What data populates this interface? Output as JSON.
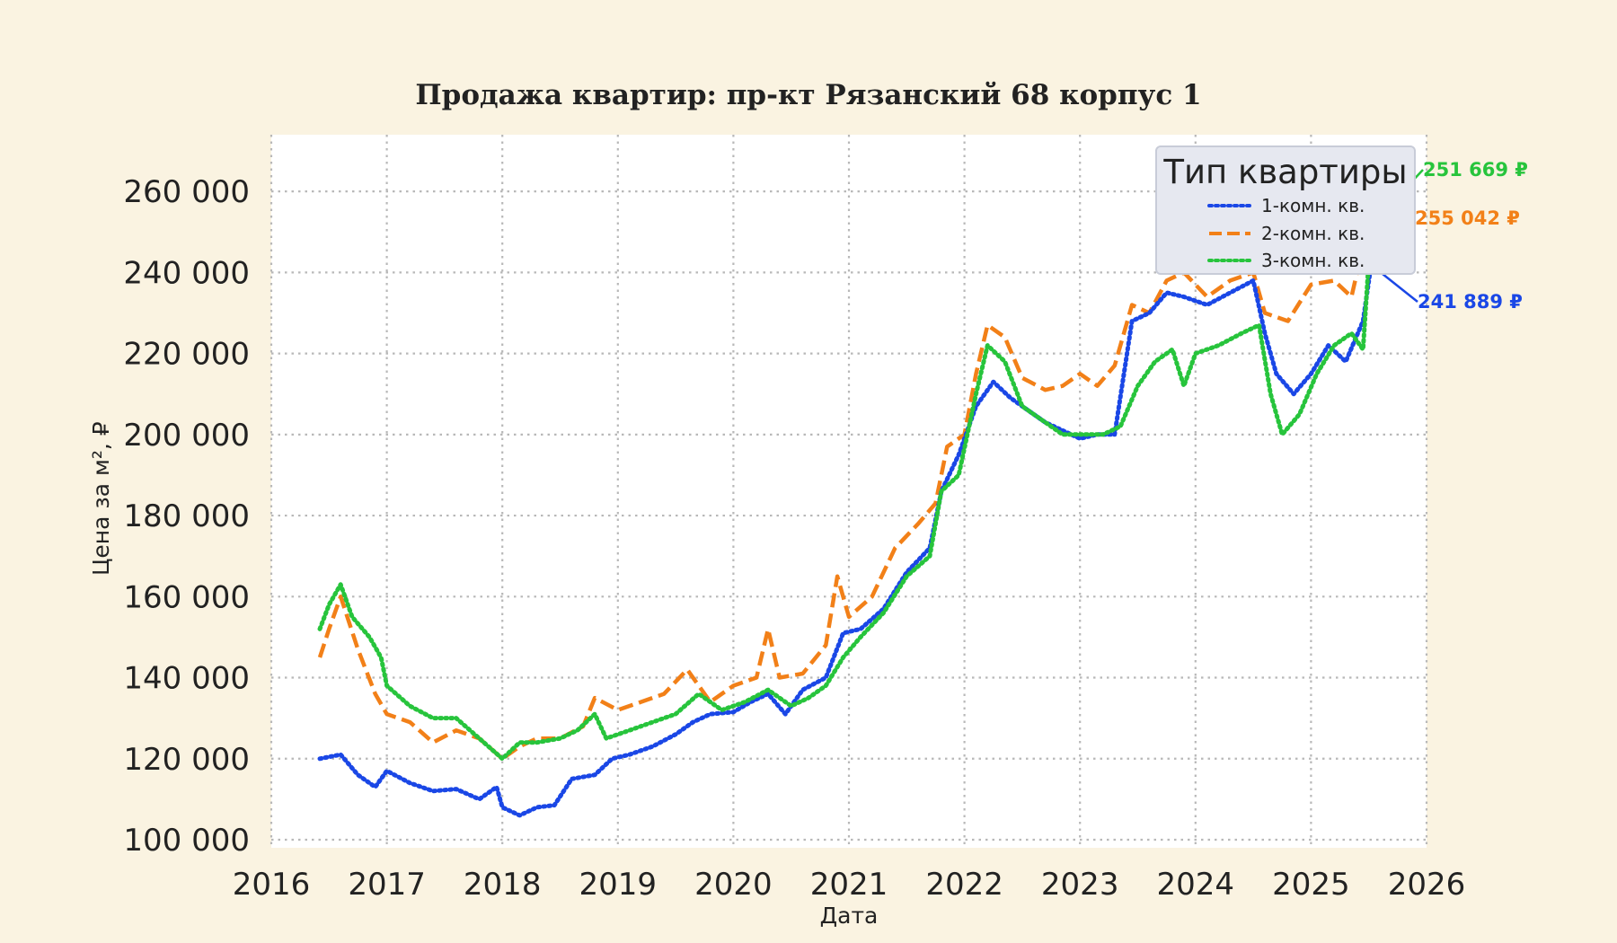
{
  "chart_data": {
    "type": "line",
    "title": "Продажа квартир: пр-кт Рязанский 68 корпус 1",
    "xlabel": "Дата",
    "ylabel": "Цена за м², ₽",
    "xlim": [
      2016,
      2026
    ],
    "ylim": [
      98000,
      274000
    ],
    "x_ticks": [
      "2016",
      "2017",
      "2018",
      "2019",
      "2020",
      "2021",
      "2022",
      "2023",
      "2024",
      "2025",
      "2026"
    ],
    "y_ticks": [
      100000,
      120000,
      140000,
      160000,
      180000,
      200000,
      220000,
      240000,
      260000
    ],
    "y_tick_labels": [
      "100 000",
      "120 000",
      "140 000",
      "160 000",
      "180 000",
      "200 000",
      "220 000",
      "240 000",
      "260 000"
    ],
    "grid": true,
    "legend": {
      "title": "Тип квартиры",
      "placement": "top-right"
    },
    "series": [
      {
        "name": "1-комн. кв.",
        "color": "#1a47e6",
        "style": "dotted",
        "end_label": "241 889 ₽",
        "points": [
          [
            2016.42,
            120000
          ],
          [
            2016.6,
            121000
          ],
          [
            2016.75,
            116000
          ],
          [
            2016.9,
            113000
          ],
          [
            2017.0,
            117000
          ],
          [
            2017.2,
            114000
          ],
          [
            2017.4,
            112000
          ],
          [
            2017.6,
            112500
          ],
          [
            2017.8,
            110000
          ],
          [
            2017.95,
            113000
          ],
          [
            2018.0,
            108000
          ],
          [
            2018.15,
            106000
          ],
          [
            2018.3,
            108000
          ],
          [
            2018.45,
            108500
          ],
          [
            2018.6,
            115000
          ],
          [
            2018.8,
            116000
          ],
          [
            2018.95,
            120000
          ],
          [
            2019.1,
            121000
          ],
          [
            2019.3,
            123000
          ],
          [
            2019.5,
            126000
          ],
          [
            2019.65,
            129000
          ],
          [
            2019.8,
            131000
          ],
          [
            2020.0,
            131500
          ],
          [
            2020.15,
            134000
          ],
          [
            2020.3,
            136000
          ],
          [
            2020.45,
            131000
          ],
          [
            2020.6,
            137000
          ],
          [
            2020.8,
            140000
          ],
          [
            2020.95,
            151000
          ],
          [
            2021.1,
            152000
          ],
          [
            2021.3,
            157000
          ],
          [
            2021.5,
            166000
          ],
          [
            2021.7,
            172000
          ],
          [
            2021.8,
            186000
          ],
          [
            2021.95,
            195000
          ],
          [
            2022.1,
            207000
          ],
          [
            2022.25,
            213000
          ],
          [
            2022.4,
            209000
          ],
          [
            2022.55,
            206000
          ],
          [
            2022.7,
            203000
          ],
          [
            2022.85,
            201000
          ],
          [
            2023.0,
            199000
          ],
          [
            2023.15,
            200000
          ],
          [
            2023.3,
            200000
          ],
          [
            2023.45,
            228000
          ],
          [
            2023.6,
            230000
          ],
          [
            2023.75,
            235000
          ],
          [
            2023.9,
            234000
          ],
          [
            2024.1,
            232000
          ],
          [
            2024.3,
            235000
          ],
          [
            2024.5,
            238000
          ],
          [
            2024.6,
            225000
          ],
          [
            2024.7,
            215000
          ],
          [
            2024.85,
            210000
          ],
          [
            2025.0,
            215000
          ],
          [
            2025.15,
            222000
          ],
          [
            2025.3,
            218000
          ],
          [
            2025.45,
            228000
          ],
          [
            2025.52,
            241889
          ]
        ]
      },
      {
        "name": "2-комн. кв.",
        "color": "#f28018",
        "style": "dashed",
        "end_label": "255 042 ₽",
        "points": [
          [
            2016.42,
            145000
          ],
          [
            2016.5,
            152000
          ],
          [
            2016.6,
            160000
          ],
          [
            2016.75,
            147000
          ],
          [
            2016.9,
            136000
          ],
          [
            2017.0,
            131000
          ],
          [
            2017.2,
            129000
          ],
          [
            2017.4,
            124000
          ],
          [
            2017.6,
            127000
          ],
          [
            2017.8,
            125000
          ],
          [
            2018.0,
            120000
          ],
          [
            2018.15,
            123000
          ],
          [
            2018.3,
            125000
          ],
          [
            2018.5,
            125000
          ],
          [
            2018.7,
            128000
          ],
          [
            2018.8,
            135000
          ],
          [
            2019.0,
            132000
          ],
          [
            2019.2,
            134000
          ],
          [
            2019.4,
            136000
          ],
          [
            2019.6,
            142000
          ],
          [
            2019.8,
            134000
          ],
          [
            2020.0,
            138000
          ],
          [
            2020.2,
            140000
          ],
          [
            2020.3,
            152000
          ],
          [
            2020.4,
            140000
          ],
          [
            2020.6,
            141000
          ],
          [
            2020.8,
            148000
          ],
          [
            2020.9,
            165000
          ],
          [
            2021.0,
            155000
          ],
          [
            2021.2,
            160000
          ],
          [
            2021.4,
            172000
          ],
          [
            2021.6,
            178000
          ],
          [
            2021.75,
            183000
          ],
          [
            2021.85,
            197000
          ],
          [
            2022.0,
            200000
          ],
          [
            2022.1,
            215000
          ],
          [
            2022.2,
            227000
          ],
          [
            2022.35,
            224000
          ],
          [
            2022.5,
            214000
          ],
          [
            2022.7,
            211000
          ],
          [
            2022.85,
            212000
          ],
          [
            2023.0,
            215000
          ],
          [
            2023.15,
            212000
          ],
          [
            2023.3,
            217000
          ],
          [
            2023.45,
            232000
          ],
          [
            2023.6,
            230000
          ],
          [
            2023.75,
            238000
          ],
          [
            2023.9,
            240000
          ],
          [
            2024.1,
            234000
          ],
          [
            2024.3,
            238000
          ],
          [
            2024.5,
            240000
          ],
          [
            2024.6,
            230000
          ],
          [
            2024.8,
            228000
          ],
          [
            2025.0,
            237000
          ],
          [
            2025.2,
            238000
          ],
          [
            2025.35,
            234000
          ],
          [
            2025.52,
            255042
          ]
        ]
      },
      {
        "name": "3-комн. кв.",
        "color": "#27c43c",
        "style": "dotted",
        "end_label": "251 669 ₽",
        "points": [
          [
            2016.42,
            152000
          ],
          [
            2016.5,
            158000
          ],
          [
            2016.6,
            163000
          ],
          [
            2016.7,
            155000
          ],
          [
            2016.85,
            150000
          ],
          [
            2016.95,
            145000
          ],
          [
            2017.0,
            138000
          ],
          [
            2017.2,
            133000
          ],
          [
            2017.4,
            130000
          ],
          [
            2017.6,
            130000
          ],
          [
            2017.8,
            125000
          ],
          [
            2018.0,
            120000
          ],
          [
            2018.15,
            124000
          ],
          [
            2018.3,
            124000
          ],
          [
            2018.5,
            125000
          ],
          [
            2018.65,
            127000
          ],
          [
            2018.8,
            131000
          ],
          [
            2018.9,
            125000
          ],
          [
            2019.1,
            127000
          ],
          [
            2019.3,
            129000
          ],
          [
            2019.5,
            131000
          ],
          [
            2019.7,
            136000
          ],
          [
            2019.9,
            132000
          ],
          [
            2020.1,
            134000
          ],
          [
            2020.3,
            137000
          ],
          [
            2020.5,
            133000
          ],
          [
            2020.65,
            135000
          ],
          [
            2020.8,
            138000
          ],
          [
            2020.95,
            145000
          ],
          [
            2021.1,
            150000
          ],
          [
            2021.3,
            156000
          ],
          [
            2021.5,
            165000
          ],
          [
            2021.7,
            170000
          ],
          [
            2021.8,
            186000
          ],
          [
            2021.95,
            190000
          ],
          [
            2022.1,
            210000
          ],
          [
            2022.2,
            222000
          ],
          [
            2022.35,
            218000
          ],
          [
            2022.5,
            207000
          ],
          [
            2022.7,
            203000
          ],
          [
            2022.85,
            200000
          ],
          [
            2023.0,
            200000
          ],
          [
            2023.2,
            200000
          ],
          [
            2023.35,
            202000
          ],
          [
            2023.5,
            212000
          ],
          [
            2023.65,
            218000
          ],
          [
            2023.8,
            221000
          ],
          [
            2023.9,
            212000
          ],
          [
            2024.0,
            220000
          ],
          [
            2024.2,
            222000
          ],
          [
            2024.4,
            225000
          ],
          [
            2024.55,
            227000
          ],
          [
            2024.65,
            210000
          ],
          [
            2024.75,
            200000
          ],
          [
            2024.9,
            205000
          ],
          [
            2025.05,
            215000
          ],
          [
            2025.2,
            222000
          ],
          [
            2025.35,
            225000
          ],
          [
            2025.45,
            221000
          ],
          [
            2025.52,
            251669
          ]
        ]
      }
    ]
  }
}
